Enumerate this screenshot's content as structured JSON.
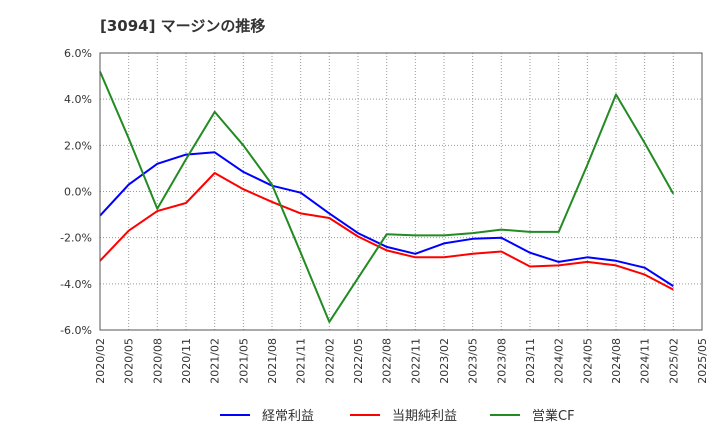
{
  "chart_data": {
    "type": "line",
    "title": "[3094]  マージンの推移",
    "xlabel": "",
    "ylabel": "",
    "x": [
      "2020/02",
      "2020/05",
      "2020/08",
      "2020/11",
      "2021/02",
      "2021/05",
      "2021/08",
      "2021/11",
      "2022/02",
      "2022/05",
      "2022/08",
      "2022/11",
      "2023/02",
      "2023/05",
      "2023/08",
      "2023/11",
      "2024/02",
      "2024/05",
      "2024/08",
      "2024/11",
      "2025/02",
      "2025/05"
    ],
    "ylim": [
      -6.0,
      6.0
    ],
    "yticks": [
      6.0,
      4.0,
      2.0,
      0.0,
      -2.0,
      -4.0,
      -6.0
    ],
    "ytick_labels": [
      "6.0%",
      "4.0%",
      "2.0%",
      "0.0%",
      "-2.0%",
      "-4.0%",
      "-6.0%"
    ],
    "grid": true,
    "legend_position": "bottom",
    "series": [
      {
        "name": "経常利益",
        "color": "#0000ff",
        "values": [
          -1.05,
          0.3,
          1.2,
          1.6,
          1.7,
          0.85,
          0.25,
          -0.05,
          -0.95,
          -1.8,
          -2.4,
          -2.7,
          -2.25,
          -2.05,
          -2.0,
          -2.65,
          -3.05,
          -2.85,
          -3.0,
          -3.3,
          -4.1,
          null
        ]
      },
      {
        "name": "当期純利益",
        "color": "#ff0000",
        "values": [
          -3.0,
          -1.7,
          -0.85,
          -0.5,
          0.8,
          0.1,
          -0.45,
          -0.95,
          -1.15,
          -1.95,
          -2.55,
          -2.85,
          -2.85,
          -2.7,
          -2.6,
          -3.25,
          -3.2,
          -3.05,
          -3.2,
          -3.6,
          -4.25,
          null
        ]
      },
      {
        "name": "営業CF",
        "color": "#228b22",
        "values": [
          5.2,
          2.3,
          -0.75,
          1.4,
          3.45,
          2.0,
          0.3,
          -2.65,
          -5.65,
          -3.75,
          -1.85,
          -1.9,
          -1.9,
          -1.8,
          -1.65,
          -1.75,
          -1.75,
          1.15,
          4.2,
          2.1,
          -0.1,
          null
        ]
      }
    ]
  }
}
